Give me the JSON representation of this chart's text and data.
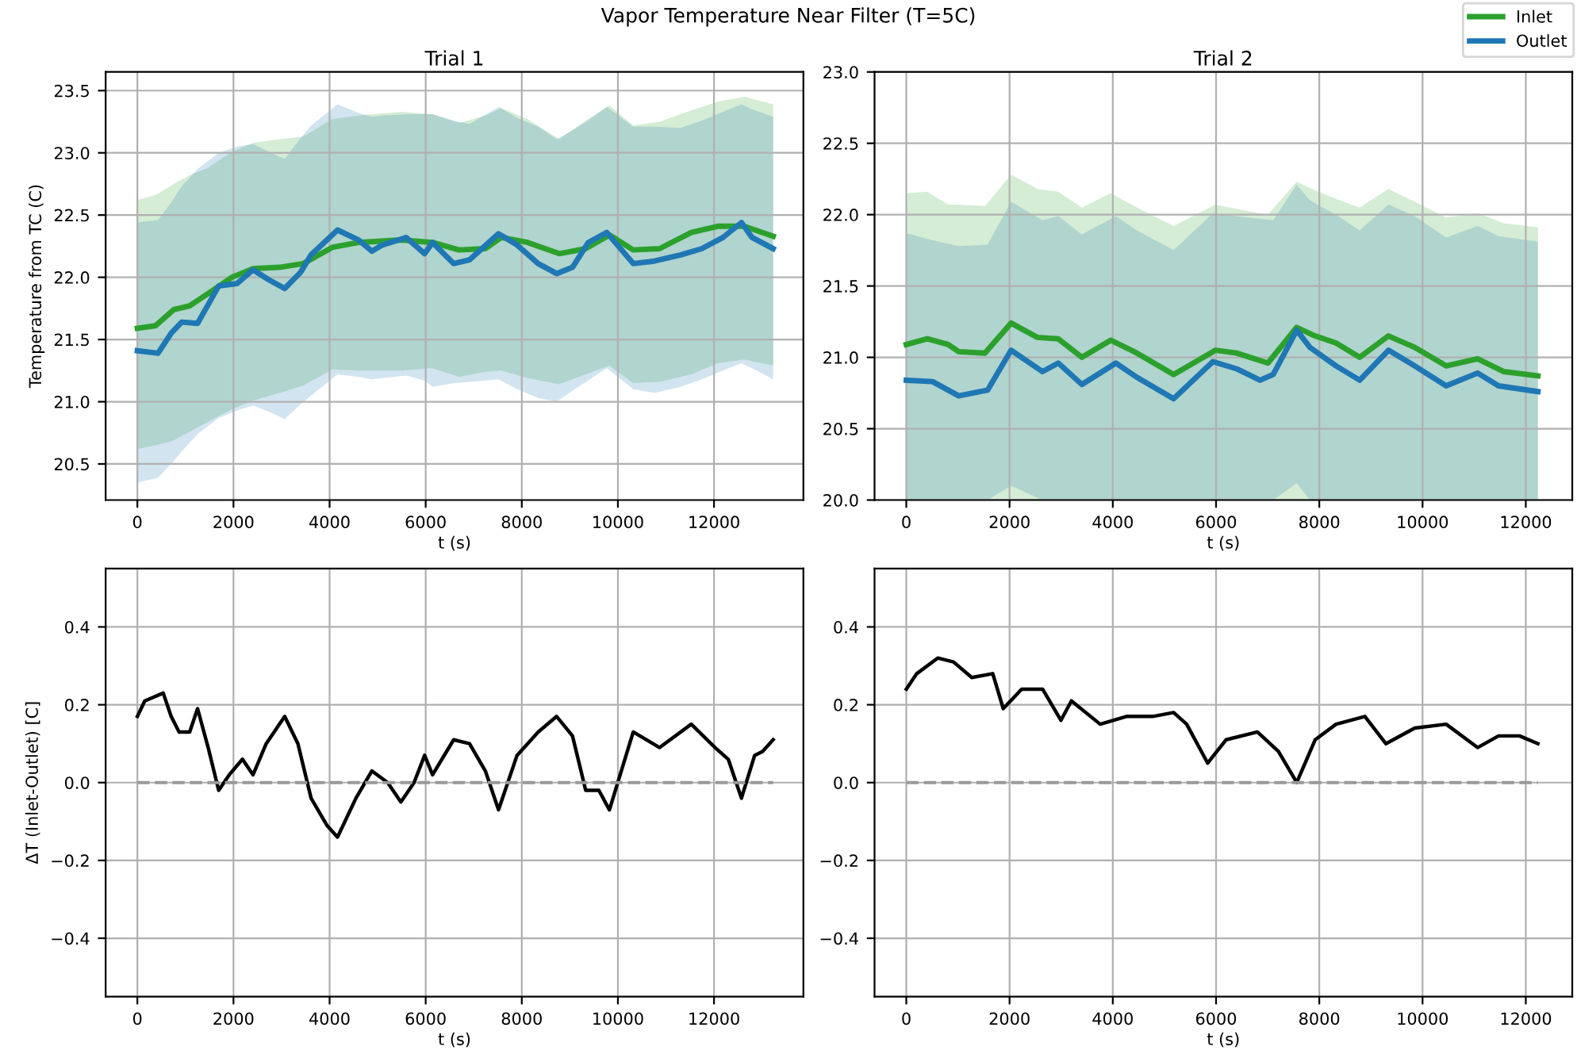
{
  "chart_data": [
    {
      "type": "line",
      "title": "Trial 1",
      "xlabel": "t (s)",
      "ylabel": "Temperature from TC (C)",
      "annotations": [
        "Vapor Temperature Near Filter (T=5C)"
      ],
      "grid": true,
      "xlim": [
        -660,
        13860
      ],
      "ylim": [
        20.21,
        23.65
      ],
      "xticks": [
        0,
        2000,
        4000,
        6000,
        8000,
        10000,
        12000
      ],
      "yticks": [
        {
          "value": 20.5,
          "label": "20.5"
        },
        {
          "value": 21,
          "label": "21.0"
        },
        {
          "value": 21.5,
          "label": "21.5"
        },
        {
          "value": 22,
          "label": "22.0"
        },
        {
          "value": 22.5,
          "label": "22.5"
        },
        {
          "value": 23,
          "label": "23.0"
        },
        {
          "value": 23.5,
          "label": "23.5"
        }
      ],
      "series": [
        {
          "color": "#2ca02c",
          "x": [
            0,
            374,
            758,
            1088,
            1473,
            1967,
            2407,
            2956,
            3451,
            4055,
            4604,
            5484,
            6143,
            6692,
            7242,
            7571,
            8121,
            8780,
            9330,
            9824,
            10319,
            10868,
            11527,
            12077,
            12626,
            13231
          ],
          "values": [
            21.59,
            21.61,
            21.74,
            21.77,
            21.87,
            22.0,
            22.07,
            22.08,
            22.11,
            22.24,
            22.28,
            22.3,
            22.28,
            22.22,
            22.23,
            22.32,
            22.28,
            22.19,
            22.23,
            22.34,
            22.22,
            22.23,
            22.36,
            22.41,
            22.41,
            22.33
          ],
          "lower": [
            20.62,
            20.65,
            20.69,
            20.76,
            20.84,
            20.94,
            21.01,
            21.07,
            21.13,
            21.26,
            21.25,
            21.25,
            21.27,
            21.2,
            21.24,
            21.25,
            21.19,
            21.14,
            21.22,
            21.29,
            21.15,
            21.16,
            21.22,
            21.31,
            21.34,
            21.29
          ],
          "upper": [
            22.62,
            22.66,
            22.75,
            22.82,
            22.88,
            23.01,
            23.08,
            23.11,
            23.13,
            23.27,
            23.3,
            23.33,
            23.31,
            23.24,
            23.3,
            23.36,
            23.27,
            23.11,
            23.26,
            23.38,
            23.22,
            23.25,
            23.34,
            23.41,
            23.45,
            23.39
          ]
        },
        {
          "color": "#1f77b4",
          "x": [
            0,
            429,
            703,
            923,
            1253,
            1692,
            2077,
            2407,
            2736,
            3066,
            3396,
            3615,
            4165,
            4604,
            4879,
            5099,
            5593,
            5978,
            6143,
            6582,
            6912,
            7516,
            7901,
            8341,
            8725,
            9055,
            9385,
            9769,
            10319,
            10758,
            11308,
            11747,
            12187,
            12571,
            12791,
            13231
          ],
          "values": [
            21.41,
            21.39,
            21.55,
            21.64,
            21.63,
            21.93,
            21.95,
            22.06,
            21.98,
            21.91,
            22.04,
            22.18,
            22.38,
            22.3,
            22.21,
            22.26,
            22.32,
            22.19,
            22.28,
            22.11,
            22.14,
            22.35,
            22.26,
            22.11,
            22.03,
            22.08,
            22.28,
            22.36,
            22.11,
            22.13,
            22.18,
            22.23,
            22.32,
            22.44,
            22.32,
            22.23
          ],
          "lower": [
            20.35,
            20.39,
            20.5,
            20.6,
            20.74,
            20.87,
            20.93,
            20.97,
            20.92,
            20.86,
            20.98,
            21.05,
            21.22,
            21.2,
            21.18,
            21.19,
            21.21,
            21.17,
            21.12,
            21.15,
            21.16,
            21.18,
            21.1,
            21.03,
            21.0,
            21.09,
            21.17,
            21.27,
            21.1,
            21.07,
            21.12,
            21.18,
            21.25,
            21.31,
            21.27,
            21.18
          ],
          "upper": [
            22.44,
            22.46,
            22.6,
            22.73,
            22.87,
            23.0,
            23.05,
            23.07,
            23.01,
            22.95,
            23.12,
            23.22,
            23.39,
            23.32,
            23.29,
            23.3,
            23.31,
            23.31,
            23.31,
            23.26,
            23.23,
            23.37,
            23.28,
            23.21,
            23.11,
            23.18,
            23.26,
            23.37,
            23.21,
            23.21,
            23.2,
            23.26,
            23.33,
            23.39,
            23.35,
            23.29
          ]
        }
      ]
    },
    {
      "type": "line",
      "title": "Trial 2",
      "xlabel": "t (s)",
      "grid": true,
      "legend": "top right",
      "xlim": [
        -615,
        12900
      ],
      "ylim": [
        20.0,
        23.0
      ],
      "xticks": [
        0,
        2000,
        4000,
        6000,
        8000,
        10000,
        12000
      ],
      "yticks": [
        {
          "value": 20,
          "label": "20.0"
        },
        {
          "value": 20.5,
          "label": "20.5"
        },
        {
          "value": 21,
          "label": "21.0"
        },
        {
          "value": 21.5,
          "label": "21.5"
        },
        {
          "value": 22,
          "label": "22.0"
        },
        {
          "value": 22.5,
          "label": "22.5"
        },
        {
          "value": 23,
          "label": "23.0"
        }
      ],
      "series": [
        {
          "name": "Inlet",
          "color": "#2ca02c",
          "x": [
            0,
            406,
            812,
            1015,
            1523,
            2030,
            2538,
            2944,
            3401,
            3959,
            4467,
            5178,
            5990,
            6396,
            7005,
            7563,
            7919,
            8325,
            8782,
            9340,
            9848,
            10457,
            11066,
            11574,
            12234
          ],
          "values": [
            21.09,
            21.13,
            21.09,
            21.04,
            21.03,
            21.24,
            21.14,
            21.13,
            21.0,
            21.12,
            21.03,
            20.88,
            21.05,
            21.03,
            20.96,
            21.21,
            21.15,
            21.1,
            21.0,
            21.15,
            21.07,
            20.94,
            20.99,
            20.9,
            20.87
          ],
          "lower": [
            20.0,
            20.0,
            20.0,
            20.0,
            20.0,
            20.0,
            20.0,
            20.0,
            20.0,
            20.0,
            20.0,
            20.0,
            20.0,
            20.0,
            20.0,
            20.0,
            20.0,
            20.0,
            20.0,
            20.0,
            20.0,
            20.0,
            20.0,
            20.0,
            20.0
          ],
          "upper": [
            22.15,
            22.16,
            22.07,
            22.07,
            22.06,
            22.28,
            22.18,
            22.16,
            22.05,
            22.15,
            22.05,
            21.92,
            22.07,
            22.04,
            22.0,
            22.23,
            22.17,
            22.11,
            22.05,
            22.18,
            22.09,
            21.98,
            22.01,
            21.94,
            21.91
          ]
        },
        {
          "name": "Outlet",
          "color": "#1f77b4",
          "x": [
            0,
            508,
            1015,
            1574,
            2030,
            2640,
            2944,
            3401,
            4061,
            4467,
            5178,
            5939,
            6396,
            6853,
            7107,
            7563,
            7817,
            8325,
            8782,
            9340,
            9848,
            10457,
            11066,
            11472,
            12234
          ],
          "values": [
            20.84,
            20.83,
            20.73,
            20.77,
            21.05,
            20.9,
            20.96,
            20.81,
            20.96,
            20.86,
            20.71,
            20.97,
            20.92,
            20.84,
            20.88,
            21.19,
            21.07,
            20.94,
            20.84,
            21.05,
            20.94,
            20.8,
            20.89,
            20.8,
            20.76
          ],
          "lower": [
            20.0,
            20.0,
            20.0,
            20.0,
            20.1,
            20.0,
            20.0,
            20.0,
            20.0,
            20.0,
            20.0,
            20.0,
            20.0,
            20.0,
            20.0,
            20.12,
            20.0,
            20.0,
            20.0,
            20.0,
            20.0,
            20.0,
            20.0,
            20.0,
            20.0
          ],
          "upper": [
            21.87,
            21.82,
            21.78,
            21.79,
            22.09,
            21.96,
            21.99,
            21.86,
            21.99,
            21.89,
            21.75,
            22.01,
            21.99,
            21.97,
            21.96,
            22.21,
            22.1,
            22.0,
            21.89,
            22.07,
            21.99,
            21.84,
            21.92,
            21.85,
            21.81
          ]
        }
      ]
    },
    {
      "type": "line",
      "xlabel": "t (s)",
      "ylabel": "ΔT (Inlet-Outlet) [C]",
      "grid": true,
      "xlim": [
        -660,
        13860
      ],
      "ylim": [
        -0.55,
        0.55
      ],
      "xticks": [
        0,
        2000,
        4000,
        6000,
        8000,
        10000,
        12000
      ],
      "yticks": [
        {
          "value": -0.4,
          "label": "−0.4"
        },
        {
          "value": -0.2,
          "label": "−0.2"
        },
        {
          "value": 0,
          "label": "0.0"
        },
        {
          "value": 0.2,
          "label": "0.2"
        },
        {
          "value": 0.4,
          "label": "0.4"
        }
      ],
      "ref_lines": [
        {
          "axis": "y",
          "value": 0,
          "color": "#999999",
          "line_style": "dashed"
        }
      ],
      "series": [
        {
          "color": "#000000",
          "x": [
            0,
            154,
            538,
            703,
            868,
            1088,
            1253,
            1473,
            1692,
            1912,
            2187,
            2407,
            2681,
            3066,
            3341,
            3615,
            3945,
            4165,
            4549,
            4879,
            5209,
            5484,
            5758,
            5978,
            6143,
            6582,
            6912,
            7242,
            7516,
            7901,
            8341,
            8725,
            9055,
            9330,
            9604,
            9824,
            10319,
            10868,
            11527,
            12022,
            12297,
            12571,
            12846,
            13011,
            13231
          ],
          "values": [
            0.17,
            0.21,
            0.23,
            0.17,
            0.13,
            0.13,
            0.19,
            0.09,
            -0.02,
            0.02,
            0.06,
            0.02,
            0.1,
            0.17,
            0.1,
            -0.04,
            -0.11,
            -0.14,
            -0.04,
            0.03,
            0.0,
            -0.05,
            0.0,
            0.07,
            0.02,
            0.11,
            0.1,
            0.03,
            -0.07,
            0.07,
            0.13,
            0.17,
            0.12,
            -0.02,
            -0.02,
            -0.07,
            0.13,
            0.09,
            0.15,
            0.09,
            0.06,
            -0.04,
            0.07,
            0.08,
            0.11
          ]
        }
      ]
    },
    {
      "type": "line",
      "xlabel": "t (s)",
      "grid": true,
      "xlim": [
        -615,
        12900
      ],
      "ylim": [
        -0.55,
        0.55
      ],
      "xticks": [
        0,
        2000,
        4000,
        6000,
        8000,
        10000,
        12000
      ],
      "yticks": [
        {
          "value": -0.4,
          "label": "−0.4"
        },
        {
          "value": -0.2,
          "label": "−0.2"
        },
        {
          "value": 0,
          "label": "0.0"
        },
        {
          "value": 0.2,
          "label": "0.2"
        },
        {
          "value": 0.4,
          "label": "0.4"
        }
      ],
      "ref_lines": [
        {
          "axis": "y",
          "value": 0,
          "color": "#999999",
          "line_style": "dashed"
        }
      ],
      "series": [
        {
          "color": "#000000",
          "x": [
            0,
            203,
            609,
            914,
            1269,
            1675,
            1878,
            2234,
            2640,
            2995,
            3198,
            3756,
            4264,
            4772,
            5178,
            5431,
            5838,
            6193,
            6802,
            7208,
            7563,
            7919,
            8325,
            8883,
            9289,
            9848,
            10457,
            11066,
            11472,
            11878,
            12234
          ],
          "values": [
            0.24,
            0.28,
            0.32,
            0.31,
            0.27,
            0.28,
            0.19,
            0.24,
            0.24,
            0.16,
            0.21,
            0.15,
            0.17,
            0.17,
            0.18,
            0.15,
            0.05,
            0.11,
            0.13,
            0.08,
            0.0,
            0.11,
            0.15,
            0.17,
            0.1,
            0.14,
            0.15,
            0.09,
            0.12,
            0.12,
            0.1
          ]
        }
      ]
    }
  ]
}
